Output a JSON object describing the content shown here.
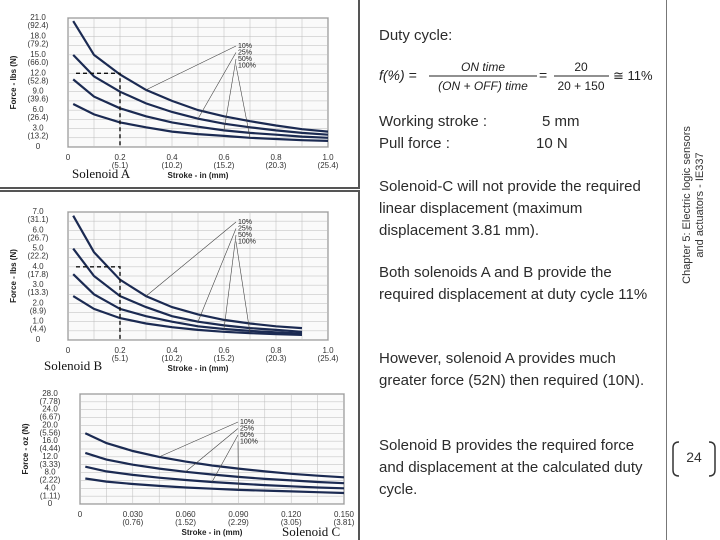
{
  "slide": {
    "title": "Duty cycle:",
    "formula": {
      "lhs": "f(%) =",
      "numerator": "ON time",
      "denominator": "(ON + OFF) time",
      "equals": "=",
      "num_value": "20",
      "den_value": "20 + 150",
      "result": "≅ 11%"
    },
    "working_stroke_label": "Working stroke :",
    "working_stroke_value": "5 mm",
    "pull_force_label": "Pull force :",
    "pull_force_value": "10 N",
    "paragraphs": [
      "Solenoid-C will not provide the required linear displacement (maximum displacement 3.81 mm).",
      "Both solenoids A and B provide the required displacement at duty cycle 11%",
      "However, solenoid A provides much greater force (52N) then required (10N).",
      "Solenoid B provides the required force and displacement at the calculated duty cycle."
    ],
    "sidebar_line1": "Chapter 5: Electric logic sensors",
    "sidebar_line2": "and actuators - IE337",
    "page_number": "24"
  },
  "chart_data": [
    {
      "type": "line",
      "title": "Solenoid A",
      "ylabel": "Force - lbs (N)",
      "xlabel": "Stroke - in (mm)",
      "y_ticks": [
        [
          "21.0",
          "(92.4)"
        ],
        [
          "18.0",
          "(79.2)"
        ],
        [
          "15.0",
          "(66.0)"
        ],
        [
          "12.0",
          "(52.8)"
        ],
        [
          "9.0",
          "(39.6)"
        ],
        [
          "6.0",
          "(26.4)"
        ],
        [
          "3.0",
          "(13.2)"
        ],
        [
          "0",
          ""
        ]
      ],
      "x_ticks": [
        [
          "0",
          ""
        ],
        [
          "0.2",
          "(5.1)"
        ],
        [
          "0.4",
          "(10.2)"
        ],
        [
          "0.6",
          "(15.2)"
        ],
        [
          "0.8",
          "(20.3)"
        ],
        [
          "1.0",
          "(25.4)"
        ]
      ],
      "ylim": [
        0,
        21
      ],
      "xlim": [
        0,
        1.0
      ],
      "legend": [
        "10%",
        "25%",
        "50%",
        "100%"
      ],
      "x": [
        0.02,
        0.1,
        0.2,
        0.3,
        0.4,
        0.5,
        0.6,
        0.7,
        0.8,
        0.9,
        1.0
      ],
      "series": [
        {
          "name": "10%",
          "values": [
            20.5,
            15.0,
            11.8,
            9.3,
            7.5,
            6.0,
            5.0,
            4.2,
            3.5,
            2.9,
            2.5
          ]
        },
        {
          "name": "25%",
          "values": [
            15.0,
            11.5,
            9.0,
            7.1,
            5.7,
            4.6,
            3.8,
            3.2,
            2.7,
            2.3,
            2.0
          ]
        },
        {
          "name": "50%",
          "values": [
            11.0,
            8.2,
            6.3,
            5.0,
            4.0,
            3.3,
            2.7,
            2.3,
            2.0,
            1.7,
            1.5
          ]
        },
        {
          "name": "100%",
          "values": [
            7.0,
            5.3,
            4.0,
            3.2,
            2.5,
            2.1,
            1.8,
            1.5,
            1.3,
            1.1,
            1.0
          ]
        }
      ],
      "marker": {
        "x": 0.2,
        "y": 12.0
      }
    },
    {
      "type": "line",
      "title": "Solenoid B",
      "ylabel": "Force - lbs (N)",
      "xlabel": "Stroke - in (mm)",
      "y_ticks": [
        [
          "7.0",
          "(31.1)"
        ],
        [
          "6.0",
          "(26.7)"
        ],
        [
          "5.0",
          "(22.2)"
        ],
        [
          "4.0",
          "(17.8)"
        ],
        [
          "3.0",
          "(13.3)"
        ],
        [
          "2.0",
          "(8.9)"
        ],
        [
          "1.0",
          "(4.4)"
        ],
        [
          "0",
          ""
        ]
      ],
      "x_ticks": [
        [
          "0",
          ""
        ],
        [
          "0.2",
          "(5.1)"
        ],
        [
          "0.4",
          "(10.2)"
        ],
        [
          "0.6",
          "(15.2)"
        ],
        [
          "0.8",
          "(20.3)"
        ],
        [
          "1.0",
          "(25.4)"
        ]
      ],
      "ylim": [
        0,
        7
      ],
      "xlim": [
        0,
        1.0
      ],
      "legend": [
        "10%",
        "25%",
        "50%",
        "100%"
      ],
      "x": [
        0.02,
        0.1,
        0.2,
        0.3,
        0.4,
        0.5,
        0.6,
        0.7,
        0.8,
        0.9
      ],
      "series": [
        {
          "name": "10%",
          "values": [
            6.8,
            4.8,
            3.3,
            2.4,
            1.8,
            1.4,
            1.1,
            0.9,
            0.75,
            0.65
          ]
        },
        {
          "name": "25%",
          "values": [
            5.0,
            3.5,
            2.4,
            1.8,
            1.3,
            1.0,
            0.8,
            0.65,
            0.55,
            0.45
          ]
        },
        {
          "name": "50%",
          "values": [
            3.6,
            2.5,
            1.7,
            1.3,
            1.0,
            0.75,
            0.6,
            0.5,
            0.42,
            0.35
          ]
        },
        {
          "name": "100%",
          "values": [
            2.4,
            1.7,
            1.2,
            0.9,
            0.7,
            0.55,
            0.45,
            0.38,
            0.32,
            0.28
          ]
        }
      ],
      "marker": {
        "x": 0.2,
        "y": 4.0
      }
    },
    {
      "type": "line",
      "title": "Solenoid C",
      "ylabel": "Force - oz (N)",
      "xlabel": "Stroke - in (mm)",
      "y_ticks": [
        [
          "28.0",
          "(7.78)"
        ],
        [
          "24.0",
          "(6.67)"
        ],
        [
          "20.0",
          "(5.56)"
        ],
        [
          "16.0",
          "(4.44)"
        ],
        [
          "12.0",
          "(3.33)"
        ],
        [
          "8.0",
          "(2.22)"
        ],
        [
          "4.0",
          "(1.11)"
        ],
        [
          "0",
          ""
        ]
      ],
      "x_ticks": [
        [
          "0",
          ""
        ],
        [
          "0.030",
          "(0.76)"
        ],
        [
          "0.060",
          "(1.52)"
        ],
        [
          "0.090",
          "(2.29)"
        ],
        [
          "0.120",
          "(3.05)"
        ],
        [
          "0.150",
          "(3.81)"
        ]
      ],
      "ylim": [
        0,
        28
      ],
      "xlim": [
        0,
        0.15
      ],
      "legend": [
        "10%",
        "25%",
        "50%",
        "100%"
      ],
      "x": [
        0.003,
        0.015,
        0.03,
        0.045,
        0.06,
        0.075,
        0.09,
        0.105,
        0.12,
        0.135,
        0.15
      ],
      "series": [
        {
          "name": "10%",
          "values": [
            18.0,
            15.5,
            13.5,
            12.0,
            10.8,
            9.8,
            9.0,
            8.3,
            7.7,
            7.2,
            6.8
          ]
        },
        {
          "name": "25%",
          "values": [
            13.0,
            11.3,
            10.0,
            9.0,
            8.2,
            7.5,
            6.9,
            6.4,
            6.0,
            5.6,
            5.3
          ]
        },
        {
          "name": "50%",
          "values": [
            9.5,
            8.3,
            7.4,
            6.7,
            6.1,
            5.6,
            5.2,
            4.8,
            4.5,
            4.2,
            4.0
          ]
        },
        {
          "name": "100%",
          "values": [
            6.5,
            5.7,
            5.1,
            4.6,
            4.2,
            3.9,
            3.6,
            3.4,
            3.2,
            3.0,
            2.8
          ]
        }
      ]
    }
  ]
}
